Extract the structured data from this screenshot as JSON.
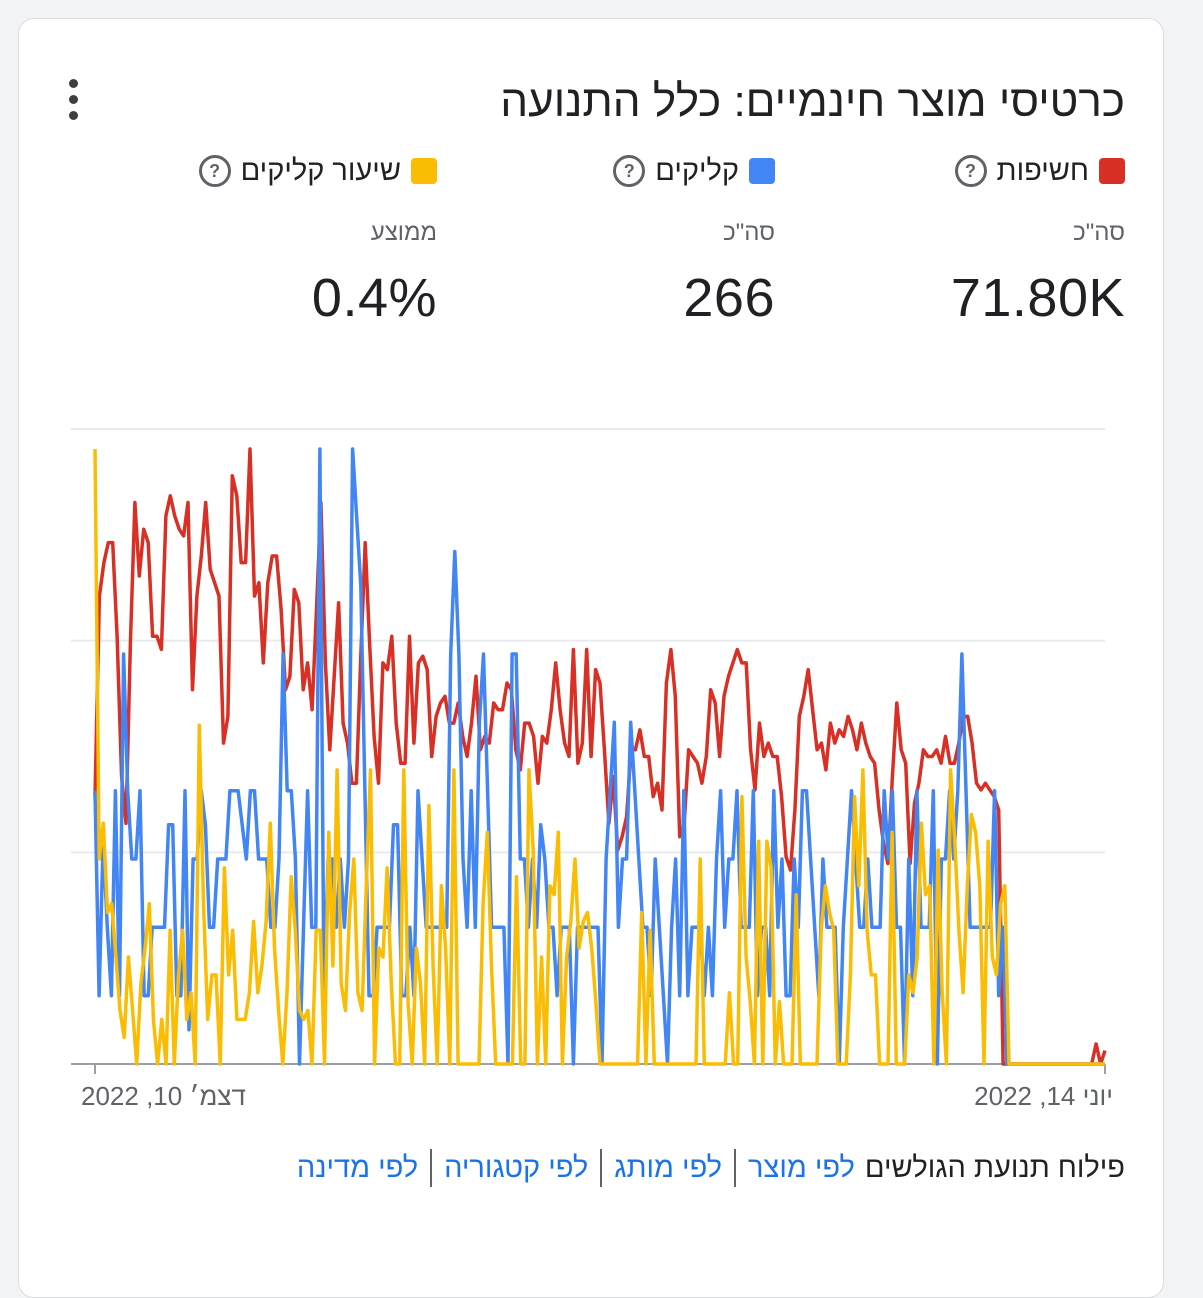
{
  "card": {
    "title": "כרטיסי מוצר חינמיים: כלל התנועה",
    "menu_icon": "more-vert-icon"
  },
  "metrics": [
    {
      "label": "חשיפות",
      "color": "#d93025",
      "sub": "סה\"כ",
      "value": "71.80K"
    },
    {
      "label": "קליקים",
      "color": "#4285f4",
      "sub": "סה\"כ",
      "value": "266"
    },
    {
      "label": "שיעור קליקים",
      "color": "#fbbc04",
      "sub": "ממוצע",
      "value": "0.4%"
    }
  ],
  "help_icon_glyph": "?",
  "chart_data": {
    "type": "line",
    "x_start_label": "דצמ׳ 10, 2022",
    "x_end_label": "יוני 14, 2022",
    "grid": true,
    "legend": "top",
    "series": [
      {
        "name": "חשיפות",
        "color": "#d93025",
        "values": [
          40,
          70,
          75,
          78,
          78,
          64,
          43,
          36,
          63,
          84,
          73,
          80,
          78,
          64,
          64,
          62,
          82,
          85,
          82,
          80,
          79,
          84,
          56,
          70,
          76,
          84,
          74,
          72,
          70,
          48,
          52,
          88,
          85,
          75,
          75,
          92,
          70,
          72,
          60,
          72,
          76,
          76,
          68,
          56,
          58,
          71,
          69,
          56,
          60,
          53,
          68,
          84,
          60,
          47,
          58,
          69,
          51,
          48,
          42,
          42,
          61,
          78,
          63,
          49,
          42,
          60,
          59,
          64,
          51,
          45,
          45,
          64,
          48,
          60,
          61,
          59,
          46,
          52,
          54,
          55,
          51,
          51,
          54,
          49,
          46,
          51,
          58,
          47,
          49,
          48,
          54,
          53,
          53,
          57,
          56,
          47,
          44,
          51,
          51,
          49,
          42,
          49,
          48,
          53,
          60,
          53,
          48,
          46,
          62,
          45,
          48,
          62,
          46,
          59,
          57,
          47,
          36,
          43,
          32,
          34,
          37,
          47,
          47,
          50,
          46,
          46,
          40,
          42,
          38,
          57,
          62,
          55,
          34,
          36,
          47,
          46,
          45,
          42,
          46,
          56,
          54,
          46,
          55,
          58,
          60,
          62,
          60,
          60,
          47,
          41,
          51,
          46,
          48,
          46,
          46,
          40,
          31,
          29,
          38,
          52,
          55,
          59,
          53,
          47,
          48,
          44,
          51,
          48,
          50,
          49,
          52,
          50,
          47,
          51,
          48,
          46,
          45,
          38,
          33,
          30,
          43,
          54,
          47,
          45,
          30,
          39,
          42,
          47,
          46,
          46,
          47,
          45,
          49,
          45,
          45,
          48,
          52,
          52,
          48,
          42,
          41,
          42,
          41,
          40,
          38,
          0,
          0,
          0,
          0,
          0,
          0,
          0,
          0,
          0,
          0,
          0,
          0,
          0,
          0,
          0,
          0,
          0,
          0,
          0,
          0,
          0,
          3,
          0,
          2
        ]
      },
      {
        "name": "קליקים",
        "color": "#4285f4",
        "values": [
          40,
          10,
          33,
          20,
          10,
          40,
          10,
          60,
          40,
          30,
          30,
          40,
          10,
          10,
          20,
          20,
          20,
          20,
          35,
          35,
          10,
          10,
          40,
          5,
          30,
          30,
          40,
          35,
          20,
          20,
          30,
          30,
          30,
          40,
          40,
          40,
          35,
          30,
          40,
          40,
          30,
          30,
          30,
          20,
          20,
          30,
          60,
          40,
          40,
          30,
          0,
          20,
          40,
          20,
          20,
          90,
          10,
          30,
          30,
          20,
          30,
          20,
          30,
          90,
          80,
          70,
          40,
          10,
          10,
          20,
          20,
          20,
          20,
          35,
          35,
          10,
          10,
          20,
          10,
          40,
          30,
          20,
          20,
          20,
          20,
          20,
          20,
          60,
          75,
          60,
          30,
          20,
          40,
          20,
          50,
          60,
          40,
          20,
          20,
          20,
          20,
          0,
          60,
          60,
          30,
          30,
          20,
          30,
          20,
          35,
          30,
          20,
          20,
          10,
          20,
          20,
          20,
          0,
          20,
          20,
          20,
          20,
          20,
          20,
          0,
          30,
          40,
          50,
          20,
          30,
          30,
          50,
          40,
          30,
          20,
          20,
          10,
          30,
          20,
          10,
          0,
          20,
          30,
          10,
          40,
          10,
          20,
          20,
          20,
          10,
          20,
          10,
          30,
          40,
          20,
          30,
          30,
          40,
          20,
          20,
          20,
          40,
          10,
          20,
          20,
          10,
          40,
          20,
          30,
          10,
          10,
          30,
          20,
          40,
          40,
          30,
          20,
          10,
          30,
          20,
          20,
          20,
          0,
          20,
          30,
          40,
          30,
          20,
          20,
          30,
          20,
          20,
          20,
          40,
          30,
          40,
          20,
          20,
          0,
          30,
          10,
          40,
          20,
          20,
          20,
          40,
          0,
          30,
          30,
          40,
          30,
          40,
          60,
          40,
          20,
          20,
          20,
          20,
          20,
          20,
          40,
          10,
          20,
          0,
          0,
          0,
          0,
          0,
          0,
          0,
          0,
          0,
          0,
          0,
          0,
          0,
          0,
          0,
          0,
          0,
          0,
          0,
          0,
          0,
          0,
          0,
          0,
          0
        ]
      },
      {
        "name": "שיעור קליקים",
        "color": "#fbbc04",
        "values": [
          69,
          23,
          27,
          17,
          18,
          12,
          6,
          3,
          12,
          6,
          0,
          9,
          13,
          18,
          5,
          0,
          5,
          0,
          15,
          0,
          10,
          15,
          5,
          8,
          0,
          38,
          18,
          5,
          10,
          10,
          0,
          22,
          10,
          15,
          5,
          5,
          5,
          8,
          16,
          8,
          11,
          16,
          27,
          13,
          6,
          0,
          8,
          21,
          15,
          6,
          5,
          6,
          0,
          15,
          15,
          0,
          26,
          11,
          33,
          9,
          6,
          17,
          23,
          8,
          6,
          20,
          33,
          0,
          13,
          12,
          22,
          9,
          0,
          0,
          33,
          7,
          0,
          13,
          9,
          0,
          29,
          11,
          0,
          20,
          13,
          0,
          33,
          0,
          0,
          0,
          0,
          0,
          0,
          18,
          26,
          11,
          0,
          0,
          0,
          0,
          0,
          21,
          0,
          0,
          33,
          24,
          0,
          12,
          0,
          20,
          19,
          26,
          0,
          12,
          16,
          23,
          13,
          16,
          17,
          13,
          7,
          0,
          0,
          0,
          0,
          0,
          0,
          0,
          0,
          0,
          0,
          17,
          0,
          15,
          0,
          0,
          0,
          0,
          0,
          0,
          0,
          0,
          0,
          0,
          0,
          23,
          0,
          0,
          0,
          0,
          0,
          0,
          8,
          0,
          0,
          30,
          12,
          7,
          0,
          25,
          0,
          25,
          22,
          0,
          7,
          0,
          0,
          0,
          19,
          0,
          0,
          0,
          0,
          0,
          15,
          20,
          17,
          15,
          0,
          0,
          0,
          10,
          30,
          20,
          33,
          15,
          10,
          10,
          0,
          0,
          0,
          26,
          0,
          0,
          0,
          10,
          8,
          12,
          27,
          19,
          20,
          0,
          24,
          8,
          0,
          33,
          25,
          15,
          8,
          20,
          28,
          26,
          20,
          0,
          25,
          12,
          10,
          18,
          20,
          0,
          0,
          0,
          0,
          0,
          0,
          0,
          0,
          0,
          0,
          0,
          0,
          0,
          0,
          0,
          0,
          0,
          0,
          0,
          0,
          0,
          0,
          0,
          0
        ]
      }
    ]
  },
  "breakdown": {
    "label": "פילוח תנועת הגולשים",
    "links": [
      "לפי מוצר",
      "לפי מותג",
      "לפי קטגוריה",
      "לפי מדינה"
    ]
  }
}
